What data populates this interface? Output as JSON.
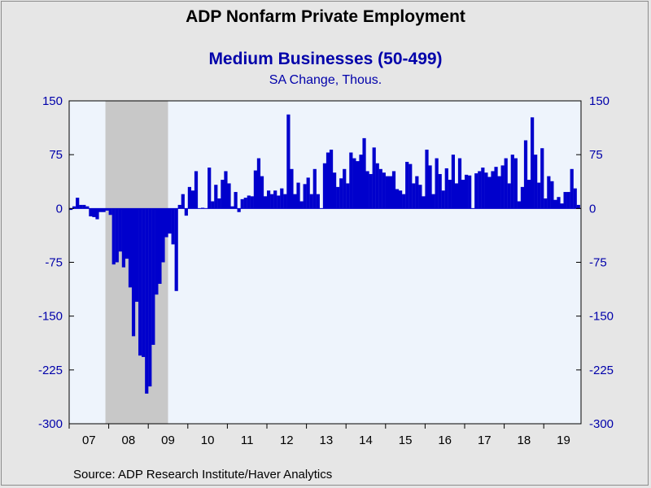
{
  "title": "ADP Nonfarm Private Employment",
  "subtitle": "Medium Businesses (50-499)",
  "subsubtitle": "SA Change, Thous.",
  "source": "Source:  ADP Research Institute/Haver Analytics",
  "colors": {
    "bar": "#0000cc",
    "axis_label": "#0000aa",
    "plot_bg": "#eef4fc",
    "recession": "#c8c8c8",
    "page_bg": "#e6e6e6"
  },
  "chart_data": {
    "type": "bar",
    "xlabel": "",
    "ylabel": "",
    "ylim": [
      -300,
      150
    ],
    "yticks": [
      150,
      75,
      0,
      -75,
      -150,
      -225,
      -300
    ],
    "ytick_labels": [
      "150",
      "75",
      "0",
      "-75",
      "-150",
      "-225",
      "-300"
    ],
    "xtick_labels": [
      "07",
      "08",
      "09",
      "10",
      "11",
      "12",
      "13",
      "14",
      "15",
      "16",
      "17",
      "18",
      "19"
    ],
    "x_start": "2007-01",
    "recession_shading": {
      "start": "2007-12",
      "end": "2009-06"
    },
    "grid": false,
    "monthly_values": [
      -2,
      3,
      15,
      5,
      5,
      3,
      -11,
      -12,
      -15,
      -5,
      -5,
      -3,
      -9,
      -78,
      -75,
      -60,
      -82,
      -70,
      -110,
      -178,
      -130,
      -205,
      -207,
      -258,
      -248,
      -190,
      -120,
      -105,
      -75,
      -40,
      -35,
      -50,
      -115,
      5,
      20,
      -10,
      30,
      25,
      52,
      0,
      1,
      0,
      57,
      10,
      33,
      14,
      40,
      52,
      35,
      3,
      23,
      -5,
      13,
      15,
      18,
      17,
      53,
      70,
      45,
      17,
      25,
      20,
      25,
      18,
      28,
      20,
      131,
      55,
      20,
      36,
      10,
      34,
      43,
      20,
      55,
      20,
      0,
      63,
      78,
      82,
      50,
      30,
      42,
      55,
      35,
      78,
      70,
      66,
      75,
      98,
      52,
      48,
      85,
      63,
      55,
      50,
      45,
      45,
      52,
      27,
      25,
      20,
      65,
      62,
      35,
      45,
      33,
      17,
      82,
      60,
      20,
      70,
      48,
      25,
      56,
      40,
      75,
      35,
      70,
      40,
      47,
      46,
      0,
      49,
      52,
      57,
      50,
      44,
      52,
      58,
      45,
      60,
      70,
      35,
      75,
      70,
      10,
      30,
      95,
      40,
      127,
      75,
      36,
      84,
      14,
      45,
      38,
      12,
      16,
      7,
      23,
      23,
      55,
      28,
      5
    ]
  }
}
